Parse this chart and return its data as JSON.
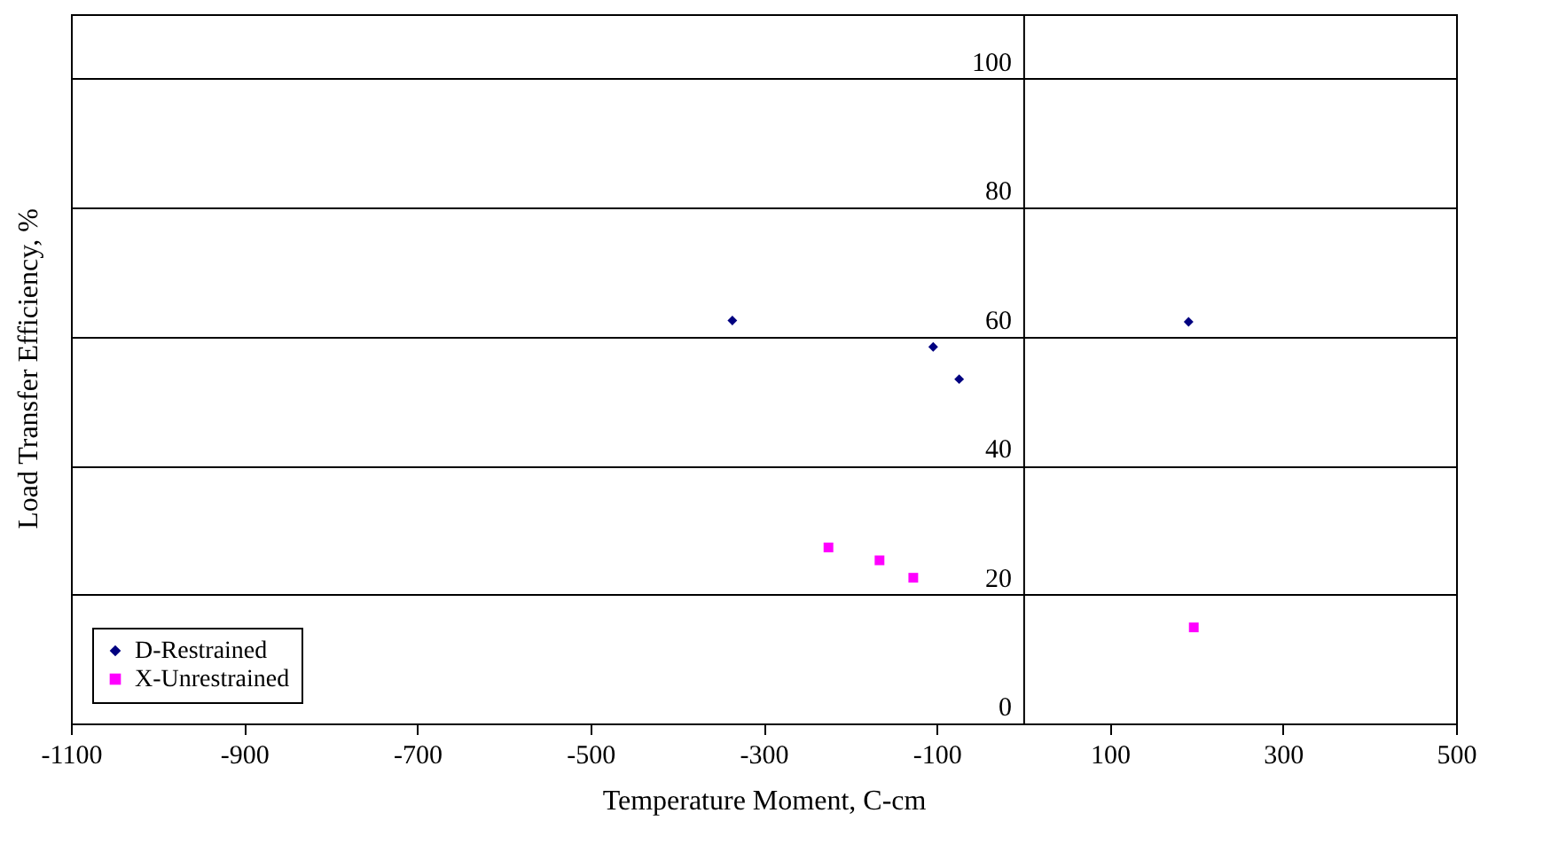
{
  "chart_data": {
    "type": "scatter",
    "xlabel": "Temperature Moment, C-cm",
    "ylabel": "Load Transfer Efficiency, %",
    "xlim": [
      -1100,
      500
    ],
    "xticks": [
      -1100,
      -900,
      -700,
      -500,
      -300,
      -100,
      100,
      300,
      500
    ],
    "ylim": [
      0,
      110
    ],
    "yticks": [
      0,
      20,
      40,
      60,
      80,
      100
    ],
    "grid": "y",
    "legend": "bottom left",
    "series": [
      {
        "name": "D-Restrained",
        "color": "#000080",
        "marker": "diamond",
        "x": [
          -336,
          -104,
          -74,
          191
        ],
        "values": [
          62.5,
          58.4,
          53.4,
          62.3
        ]
      },
      {
        "name": "X-Unrestrained",
        "color": "#ff00ff",
        "marker": "square",
        "x": [
          -225,
          -166,
          -127,
          197
        ],
        "values": [
          27.3,
          25.3,
          22.6,
          14.9
        ]
      }
    ]
  }
}
